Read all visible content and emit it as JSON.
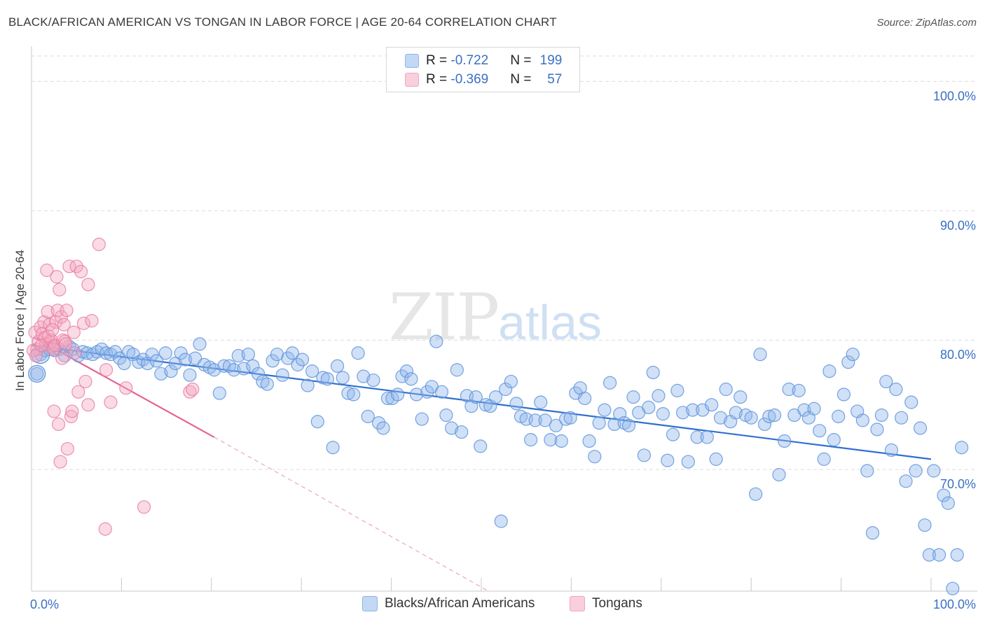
{
  "title": "BLACK/AFRICAN AMERICAN VS TONGAN IN LABOR FORCE | AGE 20-64 CORRELATION CHART",
  "source": "Source: ZipAtlas.com",
  "watermark": {
    "zip": "ZIP",
    "atlas": "atlas"
  },
  "legend": {
    "rows": [
      {
        "r_label": "R = ",
        "r_value": "-0.722",
        "n_label": "N = ",
        "n_value": "199",
        "color": "#8fb6ea"
      },
      {
        "r_label": "R = ",
        "r_value": "-0.369",
        "n_label": "N = ",
        "n_value": "57",
        "color": "#f3a6bf"
      }
    ]
  },
  "bottom_legend": [
    "Blacks/African Americans",
    "Tongans"
  ],
  "chart_data": {
    "type": "scatter",
    "title": "BLACK/AFRICAN AMERICAN VS TONGAN IN LABOR FORCE | AGE 20-64 CORRELATION CHART",
    "xlabel": "",
    "ylabel": "In Labor Force | Age 20-64",
    "xlim": [
      0,
      100
    ],
    "ylim": [
      60.6,
      102.4
    ],
    "x_tick_labels": [
      "0.0%",
      "100.0%"
    ],
    "y_ticks": [
      70,
      80,
      90,
      100
    ],
    "y_tick_labels": [
      "70.0%",
      "80.0%",
      "90.0%",
      "100.0%"
    ],
    "grid": true,
    "series": [
      {
        "name": "Blacks/African Americans",
        "color": "#8fb6ea",
        "stroke": "#5e94dc",
        "trend": {
          "x": [
            0,
            100
          ],
          "y": [
            79.6,
            70.8
          ],
          "color": "#2f6fcf"
        },
        "points": [
          [
            0.6,
            77.4
          ],
          [
            1.0,
            78.9
          ],
          [
            1.5,
            79.2
          ],
          [
            2.0,
            79.3
          ],
          [
            2.6,
            79.2
          ],
          [
            3.1,
            79.3
          ],
          [
            3.7,
            78.8
          ],
          [
            4.2,
            79.5
          ],
          [
            4.6,
            79.3
          ],
          [
            5.2,
            78.8
          ],
          [
            5.7,
            79.1
          ],
          [
            6.2,
            79.0
          ],
          [
            6.8,
            78.9
          ],
          [
            7.3,
            79.1
          ],
          [
            7.8,
            79.3
          ],
          [
            8.3,
            79.0
          ],
          [
            8.8,
            78.9
          ],
          [
            9.3,
            79.1
          ],
          [
            9.8,
            78.6
          ],
          [
            10.3,
            78.2
          ],
          [
            10.8,
            79.1
          ],
          [
            11.3,
            78.9
          ],
          [
            11.9,
            78.3
          ],
          [
            12.4,
            78.5
          ],
          [
            12.9,
            78.2
          ],
          [
            13.4,
            78.9
          ],
          [
            13.9,
            78.4
          ],
          [
            14.4,
            77.4
          ],
          [
            14.9,
            79.0
          ],
          [
            15.5,
            77.6
          ],
          [
            16.0,
            78.2
          ],
          [
            16.6,
            79.0
          ],
          [
            17.1,
            78.5
          ],
          [
            17.6,
            77.3
          ],
          [
            18.2,
            78.6
          ],
          [
            18.7,
            79.7
          ],
          [
            19.2,
            78.1
          ],
          [
            19.8,
            77.9
          ],
          [
            20.3,
            77.7
          ],
          [
            20.9,
            75.9
          ],
          [
            21.4,
            78.0
          ],
          [
            22.0,
            78.0
          ],
          [
            22.5,
            77.7
          ],
          [
            23.0,
            78.8
          ],
          [
            23.6,
            77.8
          ],
          [
            24.1,
            78.9
          ],
          [
            24.6,
            78.0
          ],
          [
            25.2,
            77.4
          ],
          [
            25.7,
            76.8
          ],
          [
            26.2,
            76.6
          ],
          [
            26.8,
            78.4
          ],
          [
            27.3,
            78.9
          ],
          [
            27.9,
            77.3
          ],
          [
            28.5,
            78.6
          ],
          [
            29.0,
            79.0
          ],
          [
            29.6,
            78.1
          ],
          [
            30.1,
            78.5
          ],
          [
            30.7,
            76.5
          ],
          [
            31.2,
            77.6
          ],
          [
            31.8,
            73.7
          ],
          [
            32.4,
            77.1
          ],
          [
            32.9,
            77.0
          ],
          [
            33.5,
            71.7
          ],
          [
            34.0,
            78.0
          ],
          [
            34.6,
            77.1
          ],
          [
            35.2,
            75.9
          ],
          [
            35.8,
            75.8
          ],
          [
            36.3,
            79.0
          ],
          [
            36.9,
            77.2
          ],
          [
            37.4,
            74.1
          ],
          [
            38.0,
            76.9
          ],
          [
            38.6,
            73.6
          ],
          [
            39.1,
            73.2
          ],
          [
            39.6,
            75.5
          ],
          [
            40.1,
            75.5
          ],
          [
            40.7,
            75.8
          ],
          [
            41.2,
            77.2
          ],
          [
            41.7,
            77.6
          ],
          [
            42.2,
            77.0
          ],
          [
            42.8,
            75.8
          ],
          [
            43.4,
            73.9
          ],
          [
            44.0,
            76.0
          ],
          [
            44.5,
            76.4
          ],
          [
            45.0,
            79.9
          ],
          [
            45.6,
            76.0
          ],
          [
            46.1,
            74.2
          ],
          [
            46.7,
            73.2
          ],
          [
            47.3,
            77.7
          ],
          [
            47.8,
            72.9
          ],
          [
            48.4,
            75.7
          ],
          [
            48.9,
            74.9
          ],
          [
            49.4,
            75.6
          ],
          [
            49.9,
            71.8
          ],
          [
            50.5,
            75.0
          ],
          [
            51.0,
            74.9
          ],
          [
            51.6,
            75.6
          ],
          [
            52.2,
            66.0
          ],
          [
            52.7,
            76.2
          ],
          [
            53.3,
            76.8
          ],
          [
            53.9,
            75.1
          ],
          [
            54.4,
            74.1
          ],
          [
            55.0,
            73.9
          ],
          [
            55.5,
            72.3
          ],
          [
            56.0,
            73.8
          ],
          [
            56.6,
            75.2
          ],
          [
            57.1,
            73.8
          ],
          [
            57.7,
            72.3
          ],
          [
            58.3,
            73.4
          ],
          [
            58.9,
            72.2
          ],
          [
            59.4,
            73.9
          ],
          [
            59.9,
            74.0
          ],
          [
            60.5,
            75.9
          ],
          [
            61.0,
            76.3
          ],
          [
            61.5,
            75.5
          ],
          [
            62.0,
            72.2
          ],
          [
            62.6,
            71.0
          ],
          [
            63.1,
            73.6
          ],
          [
            63.7,
            74.6
          ],
          [
            64.3,
            76.7
          ],
          [
            64.8,
            73.5
          ],
          [
            65.4,
            74.3
          ],
          [
            65.9,
            73.6
          ],
          [
            66.4,
            73.4
          ],
          [
            66.9,
            75.6
          ],
          [
            67.5,
            74.4
          ],
          [
            68.1,
            71.1
          ],
          [
            68.6,
            74.8
          ],
          [
            69.1,
            77.5
          ],
          [
            69.7,
            75.7
          ],
          [
            70.2,
            74.3
          ],
          [
            70.7,
            70.7
          ],
          [
            71.3,
            72.7
          ],
          [
            71.8,
            76.1
          ],
          [
            72.4,
            74.4
          ],
          [
            73.0,
            70.6
          ],
          [
            73.5,
            74.6
          ],
          [
            74.0,
            72.5
          ],
          [
            74.6,
            74.6
          ],
          [
            75.1,
            72.5
          ],
          [
            75.6,
            75.0
          ],
          [
            76.1,
            70.8
          ],
          [
            76.6,
            74.0
          ],
          [
            77.2,
            76.2
          ],
          [
            77.7,
            73.7
          ],
          [
            78.3,
            74.4
          ],
          [
            78.8,
            75.6
          ],
          [
            79.4,
            74.2
          ],
          [
            80.0,
            74.0
          ],
          [
            80.5,
            68.1
          ],
          [
            81.0,
            78.9
          ],
          [
            81.5,
            73.5
          ],
          [
            82.0,
            74.1
          ],
          [
            82.6,
            74.2
          ],
          [
            83.1,
            69.6
          ],
          [
            83.7,
            72.2
          ],
          [
            84.2,
            76.2
          ],
          [
            84.8,
            74.2
          ],
          [
            85.3,
            76.1
          ],
          [
            85.9,
            74.6
          ],
          [
            86.4,
            74.0
          ],
          [
            87.0,
            74.7
          ],
          [
            87.6,
            73.0
          ],
          [
            88.1,
            70.8
          ],
          [
            88.7,
            77.6
          ],
          [
            89.2,
            72.3
          ],
          [
            89.7,
            74.1
          ],
          [
            90.3,
            75.8
          ],
          [
            90.8,
            78.3
          ],
          [
            91.3,
            78.9
          ],
          [
            91.8,
            74.5
          ],
          [
            92.4,
            73.8
          ],
          [
            92.9,
            69.9
          ],
          [
            93.5,
            65.1
          ],
          [
            94.0,
            73.1
          ],
          [
            94.5,
            74.2
          ],
          [
            95.0,
            76.8
          ],
          [
            95.6,
            71.5
          ],
          [
            96.1,
            76.2
          ],
          [
            96.7,
            74.0
          ],
          [
            97.2,
            69.1
          ],
          [
            97.8,
            75.2
          ],
          [
            98.3,
            69.9
          ],
          [
            98.8,
            73.2
          ],
          [
            99.3,
            65.7
          ],
          [
            99.8,
            63.4
          ],
          [
            100.3,
            69.9
          ],
          [
            100.9,
            63.4
          ],
          [
            101.4,
            68.0
          ],
          [
            101.9,
            67.4
          ],
          [
            102.4,
            60.8
          ],
          [
            102.9,
            63.4
          ],
          [
            103.4,
            71.7
          ]
        ]
      },
      {
        "name": "Tongans",
        "color": "#f3a6bf",
        "stroke": "#e77fa3",
        "trend": {
          "x": [
            0.3,
            20.3
          ],
          "y": [
            80.2,
            72.5
          ],
          "dashed_to": [
            50.8,
            60.6
          ],
          "color": "#e3648f"
        },
        "points": [
          [
            0.4,
            80.6
          ],
          [
            0.6,
            79.3
          ],
          [
            0.8,
            79.9
          ],
          [
            1.0,
            81.0
          ],
          [
            1.2,
            80.5
          ],
          [
            1.4,
            81.4
          ],
          [
            1.5,
            80.2
          ],
          [
            1.6,
            79.7
          ],
          [
            1.7,
            85.4
          ],
          [
            1.8,
            82.2
          ],
          [
            2.0,
            81.2
          ],
          [
            2.1,
            79.8
          ],
          [
            2.2,
            80.0
          ],
          [
            2.3,
            79.5
          ],
          [
            2.4,
            79.3
          ],
          [
            2.5,
            74.5
          ],
          [
            2.6,
            79.6
          ],
          [
            2.7,
            81.4
          ],
          [
            2.8,
            84.9
          ],
          [
            2.9,
            82.3
          ],
          [
            3.0,
            73.5
          ],
          [
            3.1,
            83.9
          ],
          [
            3.2,
            70.6
          ],
          [
            3.3,
            81.8
          ],
          [
            3.4,
            78.6
          ],
          [
            3.5,
            80.0
          ],
          [
            3.6,
            81.2
          ],
          [
            3.7,
            79.9
          ],
          [
            3.9,
            82.3
          ],
          [
            4.0,
            71.6
          ],
          [
            4.2,
            85.7
          ],
          [
            4.4,
            74.1
          ],
          [
            4.5,
            74.5
          ],
          [
            4.7,
            80.6
          ],
          [
            4.8,
            79.0
          ],
          [
            5.0,
            85.7
          ],
          [
            5.2,
            76.0
          ],
          [
            5.5,
            85.3
          ],
          [
            5.8,
            81.3
          ],
          [
            6.0,
            76.8
          ],
          [
            6.3,
            84.3
          ],
          [
            6.3,
            75.0
          ],
          [
            6.7,
            81.5
          ],
          [
            7.5,
            87.4
          ],
          [
            8.2,
            65.4
          ],
          [
            8.3,
            77.7
          ],
          [
            8.8,
            75.2
          ],
          [
            10.5,
            76.3
          ],
          [
            12.5,
            67.1
          ],
          [
            17.6,
            76.0
          ],
          [
            17.9,
            76.2
          ],
          [
            0.2,
            79.2
          ],
          [
            0.5,
            78.8
          ],
          [
            1.1,
            79.6
          ],
          [
            1.9,
            80.3
          ],
          [
            2.3,
            80.8
          ],
          [
            3.8,
            79.7
          ]
        ]
      }
    ]
  }
}
